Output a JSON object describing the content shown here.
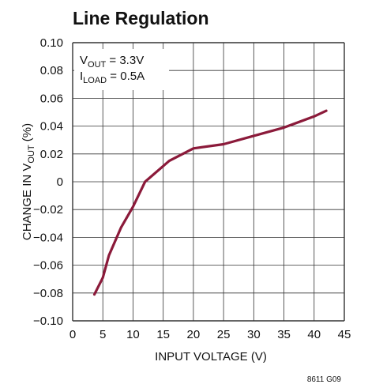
{
  "chart_data": {
    "type": "line",
    "title": "Line Regulation",
    "xlabel": "INPUT VOLTAGE (V)",
    "ylabel": {
      "prefix": "CHANGE IN V",
      "sub": "OUT",
      "suffix": " (%)"
    },
    "xlim": [
      0,
      45
    ],
    "ylim": [
      -0.1,
      0.1
    ],
    "xticks": [
      "0",
      "5",
      "10",
      "15",
      "20",
      "25",
      "30",
      "35",
      "40",
      "45"
    ],
    "yticks": [
      "0.10",
      "0.08",
      "0.06",
      "0.04",
      "0.02",
      "0",
      "-0.02",
      "-0.04",
      "-0.06",
      "-0.08",
      "-0.10"
    ],
    "ytick_values": [
      0.1,
      0.08,
      0.06,
      0.04,
      0.02,
      0,
      -0.02,
      -0.04,
      -0.06,
      -0.08,
      -0.1
    ],
    "grid": true,
    "annotations": [
      {
        "main": "V",
        "sub": "OUT",
        "rest": " = 3.3V"
      },
      {
        "main": "I",
        "sub": "LOAD",
        "rest": " = 0.5A"
      }
    ],
    "series": [
      {
        "color": "#8b1a3a",
        "x": [
          3.6,
          5,
          6,
          8,
          10,
          12,
          16,
          20,
          25,
          30,
          35,
          40,
          42
        ],
        "y": [
          -0.081,
          -0.069,
          -0.053,
          -0.033,
          -0.018,
          0.0,
          0.015,
          0.024,
          0.027,
          0.033,
          0.039,
          0.047,
          0.051
        ]
      }
    ]
  },
  "figure_id": "8611 G09"
}
